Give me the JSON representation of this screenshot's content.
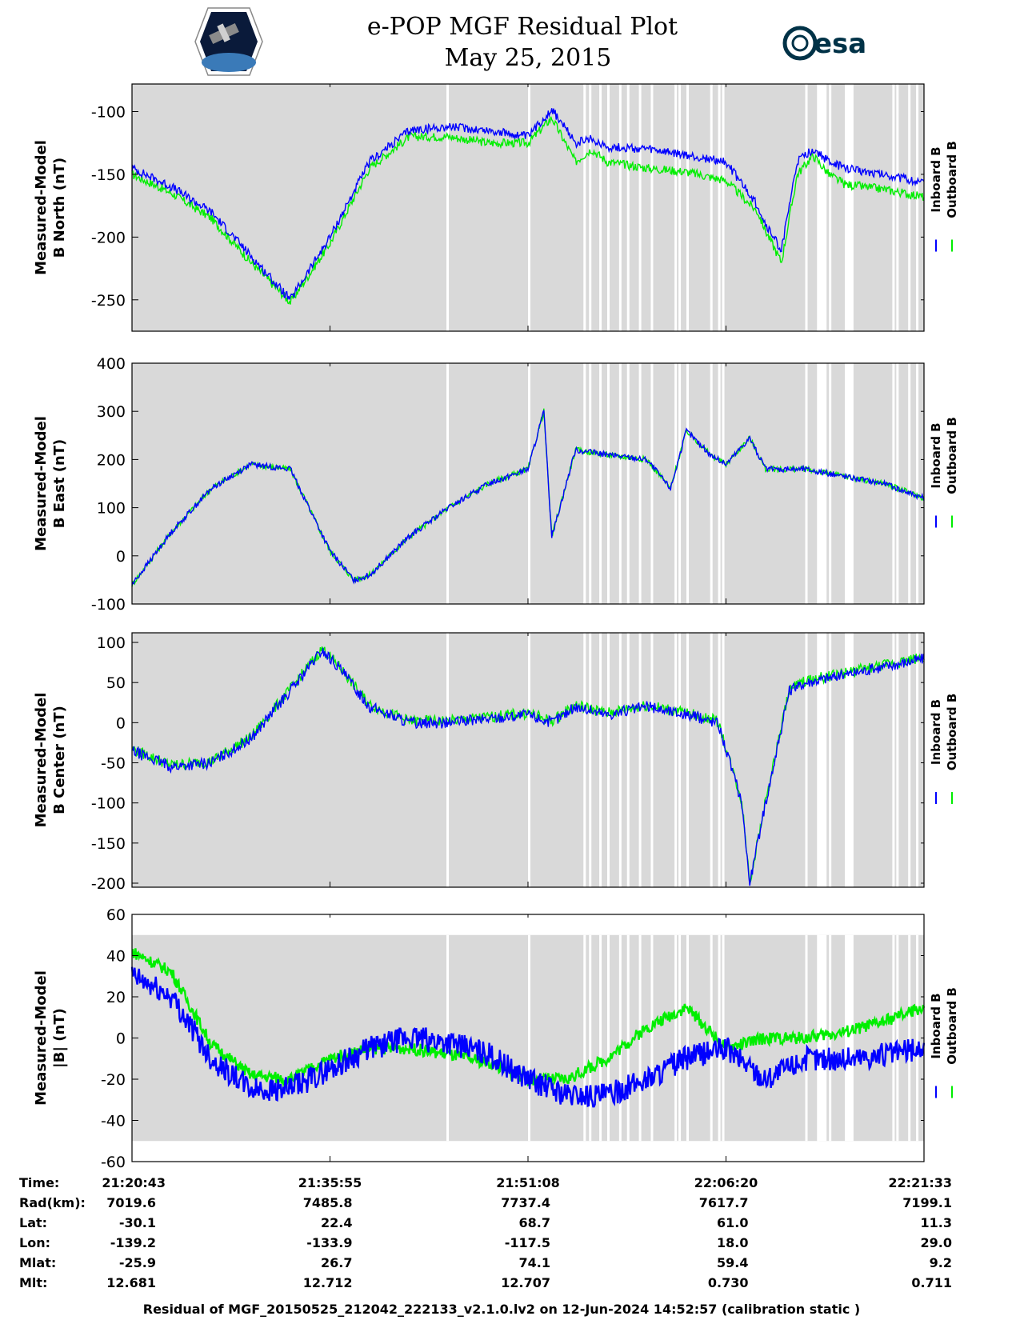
{
  "title": {
    "line1": "e-POP MGF Residual Plot",
    "line2": "May 25, 2015"
  },
  "logos": {
    "left": "cassiope-mission-logo",
    "right": "esa"
  },
  "colors": {
    "inboard": "#0000ff",
    "outboard": "#00ee00",
    "gap_band": "#d9d9d9"
  },
  "chart_data": [
    {
      "type": "line",
      "panel": "B North",
      "ylabel": [
        "Measured-Model",
        "B North (nT)"
      ],
      "ylim": [
        -275,
        -78
      ],
      "yticks": [
        -100,
        -150,
        -200,
        -250
      ],
      "ytick_labels": [
        "-100",
        "-150",
        "-200",
        "-250"
      ],
      "legend": [
        "Inboard B",
        "Outboard B"
      ],
      "x": [
        0,
        0.05,
        0.1,
        0.15,
        0.2,
        0.25,
        0.3,
        0.35,
        0.4,
        0.45,
        0.5,
        0.53,
        0.56,
        0.58,
        0.6,
        0.65,
        0.7,
        0.75,
        0.79,
        0.8,
        0.82,
        0.84,
        0.86,
        0.88,
        0.9,
        0.95,
        1.0
      ],
      "series": [
        {
          "name": "Inboard B",
          "values": [
            -145,
            -160,
            -180,
            -215,
            -250,
            -200,
            -140,
            -115,
            -112,
            -115,
            -120,
            -98,
            -125,
            -122,
            -128,
            -130,
            -135,
            -140,
            -175,
            -190,
            -210,
            -140,
            -130,
            -140,
            -145,
            -150,
            -157
          ]
        },
        {
          "name": "Outboard B",
          "values": [
            -150,
            -165,
            -185,
            -220,
            -252,
            -205,
            -145,
            -120,
            -120,
            -125,
            -125,
            -105,
            -140,
            -130,
            -140,
            -145,
            -148,
            -155,
            -180,
            -195,
            -220,
            -150,
            -135,
            -150,
            -158,
            -162,
            -168
          ]
        }
      ]
    },
    {
      "type": "line",
      "panel": "B East",
      "ylabel": [
        "Measured-Model",
        "B East (nT)"
      ],
      "ylim": [
        -100,
        400
      ],
      "yticks": [
        400,
        300,
        200,
        100,
        0,
        -100
      ],
      "ytick_labels": [
        "400",
        "300",
        "200",
        "100",
        "0",
        "-100"
      ],
      "legend": [
        "Inboard B",
        "Outboard B"
      ],
      "x": [
        0,
        0.05,
        0.1,
        0.15,
        0.2,
        0.25,
        0.28,
        0.3,
        0.35,
        0.4,
        0.45,
        0.5,
        0.52,
        0.53,
        0.56,
        0.6,
        0.65,
        0.68,
        0.7,
        0.73,
        0.75,
        0.78,
        0.8,
        0.85,
        0.9,
        0.95,
        1.0
      ],
      "series": [
        {
          "name": "Inboard B",
          "values": [
            -60,
            50,
            140,
            190,
            180,
            10,
            -50,
            -40,
            40,
            100,
            150,
            180,
            300,
            40,
            220,
            210,
            200,
            140,
            260,
            210,
            190,
            245,
            180,
            180,
            165,
            150,
            120
          ]
        },
        {
          "name": "Outboard B",
          "values": [
            -60,
            50,
            140,
            190,
            180,
            10,
            -50,
            -40,
            40,
            100,
            150,
            180,
            300,
            40,
            220,
            210,
            200,
            140,
            260,
            210,
            190,
            245,
            180,
            180,
            165,
            150,
            120
          ]
        }
      ]
    },
    {
      "type": "line",
      "panel": "B Center",
      "ylabel": [
        "Measured-Model",
        "B Center (nT)"
      ],
      "ylim": [
        -205,
        112
      ],
      "yticks": [
        100,
        50,
        0,
        -50,
        -100,
        -150,
        -200
      ],
      "ytick_labels": [
        "100",
        "50",
        "0",
        "-50",
        "-100",
        "-150",
        "-200"
      ],
      "legend": [
        "Inboard B",
        "Outboard B"
      ],
      "x": [
        0,
        0.05,
        0.1,
        0.15,
        0.2,
        0.24,
        0.26,
        0.3,
        0.35,
        0.4,
        0.45,
        0.5,
        0.53,
        0.56,
        0.6,
        0.65,
        0.7,
        0.74,
        0.77,
        0.78,
        0.8,
        0.83,
        0.85,
        0.9,
        0.95,
        1.0
      ],
      "series": [
        {
          "name": "Inboard B",
          "values": [
            -35,
            -55,
            -50,
            -20,
            40,
            90,
            70,
            20,
            0,
            0,
            5,
            10,
            0,
            20,
            10,
            20,
            10,
            0,
            -100,
            -200,
            -100,
            40,
            50,
            60,
            70,
            80
          ]
        },
        {
          "name": "Outboard B",
          "values": [
            -33,
            -53,
            -48,
            -18,
            42,
            92,
            72,
            22,
            2,
            2,
            7,
            12,
            2,
            22,
            12,
            22,
            12,
            2,
            -98,
            -198,
            -98,
            42,
            52,
            62,
            72,
            82
          ]
        }
      ]
    },
    {
      "type": "line",
      "panel": "|B|",
      "ylabel": [
        "Measured-Model",
        "|B| (nT)"
      ],
      "ylim": [
        -60,
        60
      ],
      "yticks": [
        60,
        40,
        20,
        0,
        -20,
        -40,
        -60
      ],
      "ytick_labels": [
        "60",
        "40",
        "20",
        "0",
        "-20",
        "-40",
        "-60"
      ],
      "legend": [
        "Inboard B",
        "Outboard B"
      ],
      "x": [
        0,
        0.05,
        0.1,
        0.15,
        0.2,
        0.25,
        0.3,
        0.35,
        0.4,
        0.45,
        0.5,
        0.55,
        0.6,
        0.65,
        0.7,
        0.75,
        0.8,
        0.85,
        0.9,
        0.95,
        1.0
      ],
      "series": [
        {
          "name": "Inboard B",
          "values": [
            30,
            20,
            -10,
            -25,
            -25,
            -15,
            -5,
            0,
            -2,
            -8,
            -20,
            -28,
            -28,
            -20,
            -10,
            -5,
            -20,
            -10,
            -10,
            -8,
            -5
          ]
        },
        {
          "name": "Outboard B",
          "values": [
            42,
            32,
            -3,
            -18,
            -20,
            -10,
            -5,
            -5,
            -8,
            -12,
            -20,
            -20,
            -10,
            5,
            15,
            -5,
            0,
            0,
            3,
            8,
            15
          ]
        }
      ]
    }
  ],
  "x_axis": {
    "tick_fractions": [
      0,
      0.25,
      0.5,
      0.75,
      1.0
    ],
    "rows": [
      {
        "label": "Time:",
        "values": [
          "21:20:43",
          "21:35:55",
          "21:51:08",
          "22:06:20",
          "22:21:33"
        ]
      },
      {
        "label": "Rad(km):",
        "values": [
          "7019.6",
          "7485.8",
          "7737.4",
          "7617.7",
          "7199.1"
        ]
      },
      {
        "label": "Lat:",
        "values": [
          "-30.1",
          "22.4",
          "68.7",
          "61.0",
          "11.3"
        ]
      },
      {
        "label": "Lon:",
        "values": [
          "-139.2",
          "-133.9",
          "-117.5",
          "18.0",
          "29.0"
        ]
      },
      {
        "label": "Mlat:",
        "values": [
          "-25.9",
          "26.7",
          "74.1",
          "59.4",
          "9.2"
        ]
      },
      {
        "label": "Mlt:",
        "values": [
          "12.681",
          "12.712",
          "12.707",
          "0.730",
          "0.711"
        ]
      }
    ]
  },
  "footer": "Residual of MGF_20150525_212042_222133_v2.1.0.lv2 on 12-Jun-2024 14:52:57 (calibration static )"
}
